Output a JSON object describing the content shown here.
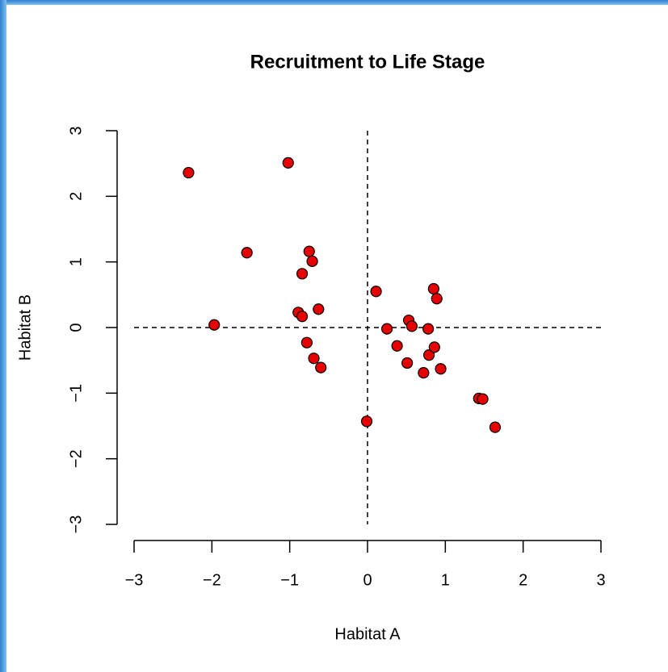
{
  "chart_data": {
    "type": "scatter",
    "title": "Recruitment to Life Stage",
    "x_label": "Habitat A",
    "y_label": "Habitat B",
    "series": [
      {
        "color": "#e60000",
        "x": [
          -2.3,
          -1.02,
          -1.55,
          -1.97,
          -0.75,
          -0.71,
          -0.84,
          -0.89,
          -0.84,
          -0.63,
          -0.78,
          -0.69,
          -0.6,
          -0.01,
          0.11,
          0.25,
          0.38,
          0.53,
          0.57,
          0.51,
          0.72,
          0.78,
          0.79,
          0.86,
          0.85,
          0.89,
          0.94,
          1.43,
          1.48,
          1.64
        ],
        "values": [
          2.36,
          2.51,
          1.14,
          0.04,
          1.16,
          1.01,
          0.82,
          0.23,
          0.17,
          0.28,
          -0.23,
          -0.47,
          -0.61,
          -1.43,
          0.55,
          -0.02,
          -0.28,
          0.11,
          0.02,
          -0.54,
          -0.69,
          -0.02,
          -0.42,
          -0.3,
          0.59,
          0.44,
          -0.63,
          -1.08,
          -1.09,
          -1.52
        ]
      }
    ],
    "xlim": [
      -3,
      3
    ],
    "ylim": [
      -3,
      3
    ],
    "xticks": [
      {
        "value": -3,
        "label": "−3"
      },
      {
        "value": -2,
        "label": "−2"
      },
      {
        "value": -1,
        "label": "−1"
      },
      0,
      1,
      2,
      3
    ],
    "yticks": [
      {
        "value": -3,
        "label": "−3"
      },
      {
        "value": -2,
        "label": "−2"
      },
      {
        "value": -1,
        "label": "−1"
      },
      0,
      1,
      2,
      3
    ],
    "reference_lines": {
      "x": 0,
      "y": 0
    }
  }
}
